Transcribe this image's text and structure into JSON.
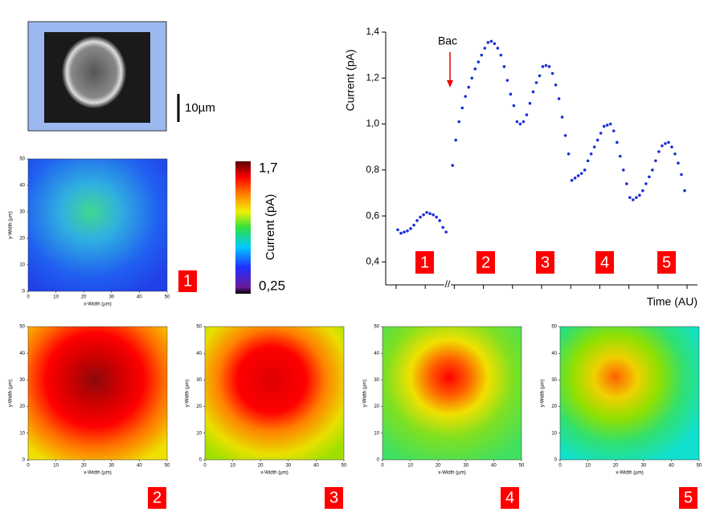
{
  "chart_data": {
    "type": "scatter",
    "ylabel": "Current (pA)",
    "xlabel": "Time (AU)",
    "annotation": "Bac",
    "segment_labels": [
      "1",
      "2",
      "3",
      "4",
      "5"
    ],
    "color": "#1a2fd8",
    "ylim": [
      0.3,
      1.4
    ],
    "yticks": [
      {
        "value": 0.4,
        "label": "0,4"
      },
      {
        "value": 0.6,
        "label": "0,6"
      },
      {
        "value": 0.8,
        "label": "0,8"
      },
      {
        "value": 1.0,
        "label": "1,0"
      },
      {
        "value": 1.2,
        "label": "1,2"
      },
      {
        "value": 1.4,
        "label": "1,4"
      }
    ],
    "values": [
      0.54,
      0.525,
      0.53,
      0.535,
      0.545,
      0.56,
      0.58,
      0.595,
      0.605,
      0.615,
      0.61,
      0.605,
      0.595,
      0.58,
      0.55,
      0.53,
      null,
      0.82,
      0.93,
      1.01,
      1.07,
      1.12,
      1.16,
      1.2,
      1.24,
      1.27,
      1.3,
      1.33,
      1.355,
      1.36,
      1.35,
      1.33,
      1.3,
      1.25,
      1.19,
      1.13,
      1.08,
      1.01,
      1.0,
      1.01,
      1.04,
      1.09,
      1.14,
      1.18,
      1.21,
      1.25,
      1.255,
      1.25,
      1.22,
      1.17,
      1.11,
      1.03,
      0.95,
      0.87,
      0.755,
      0.765,
      0.775,
      0.785,
      0.8,
      0.84,
      0.87,
      0.9,
      0.93,
      0.96,
      0.99,
      0.995,
      1.0,
      0.97,
      0.92,
      0.86,
      0.8,
      0.74,
      0.68,
      0.67,
      0.68,
      0.69,
      0.71,
      0.74,
      0.77,
      0.8,
      0.84,
      0.88,
      0.905,
      0.915,
      0.92,
      0.9,
      0.87,
      0.83,
      0.78,
      0.71
    ]
  },
  "scale_bar": "10µm",
  "colorbar": {
    "max": "1,7",
    "min": "0,25",
    "label": "Current (pA)"
  },
  "heatmaps": {
    "ticks": [
      0,
      10,
      20,
      30,
      40,
      50
    ],
    "xlabel": "x-Width (µm)",
    "ylabel": "y-Width (µm)",
    "panels": [
      "1",
      "2",
      "3",
      "4",
      "5"
    ]
  }
}
